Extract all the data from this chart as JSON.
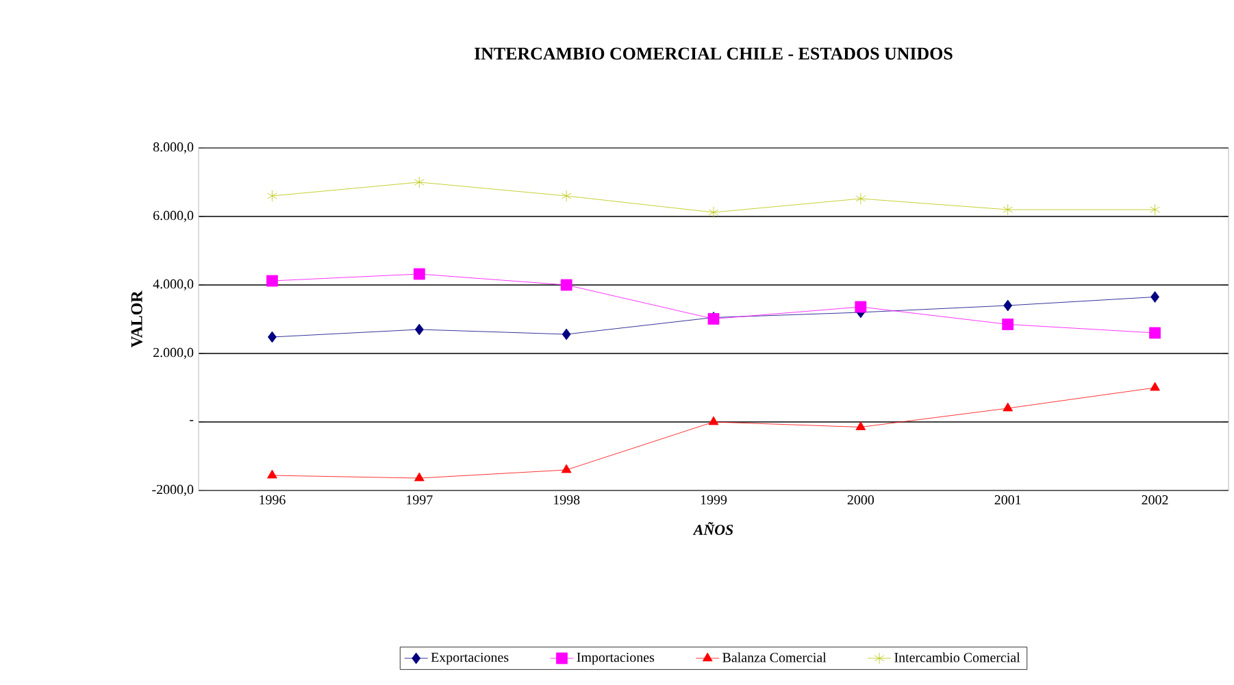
{
  "chart_data": {
    "type": "line",
    "title": "INTERCAMBIO COMERCIAL CHILE - ESTADOS UNIDOS",
    "xlabel": "AÑOS",
    "ylabel": "VALOR",
    "categories": [
      "1996",
      "1997",
      "1998",
      "1999",
      "2000",
      "2001",
      "2002"
    ],
    "series": [
      {
        "name": "Exportaciones",
        "color": "#000080",
        "marker": "diamond",
        "values": [
          2480,
          2700,
          2560,
          3050,
          3200,
          3400,
          3650
        ]
      },
      {
        "name": "Importaciones",
        "color": "#ff00ff",
        "marker": "square",
        "values": [
          4120,
          4320,
          4000,
          3010,
          3360,
          2850,
          2600
        ]
      },
      {
        "name": "Balanza Comercial",
        "color": "#ff0000",
        "marker": "triangle",
        "values": [
          -1560,
          -1640,
          -1400,
          0,
          -150,
          400,
          1000
        ]
      },
      {
        "name": "Intercambio Comercial",
        "color": "#b8c400",
        "marker": "cross",
        "values": [
          6600,
          7000,
          6600,
          6120,
          6520,
          6200,
          6200
        ]
      }
    ],
    "ylim": [
      -2000,
      8000
    ],
    "yticks": [
      {
        "value": -2000,
        "label": "-2000,0"
      },
      {
        "value": 0,
        "label": "-"
      },
      {
        "value": 2000,
        "label": "2.000,0"
      },
      {
        "value": 4000,
        "label": "4.000,0"
      },
      {
        "value": 6000,
        "label": "6.000,0"
      },
      {
        "value": 8000,
        "label": "8.000,0"
      }
    ],
    "grid": "y",
    "legend": "bottom",
    "line_style": "solid"
  }
}
